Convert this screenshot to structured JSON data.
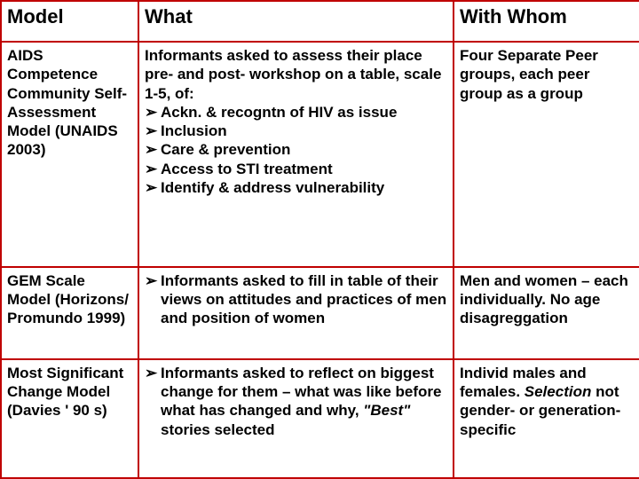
{
  "header": {
    "model": "Model",
    "what": "What",
    "whom": "With Whom"
  },
  "rows": [
    {
      "model": "AIDS Competence Community Self-Assessment Model (UNAIDS 2003)",
      "what_intro": " Informants asked to assess their place pre- and post- workshop on a table, scale 1-5, of:",
      "what_bullets": [
        "Ackn. & recogntn of HIV as issue",
        "Inclusion",
        "Care & prevention",
        "Access to STI treatment",
        "Identify & address vulnerability"
      ],
      "whom": "Four Separate Peer groups, each peer group as a group"
    },
    {
      "model": "GEM Scale Model (Horizons/ Promundo 1999)",
      "what_bullets": [
        "Informants asked to fill in table of their views on attitudes and practices of men and position of women"
      ],
      "whom": "Men and women – each individually. No age disagreggation"
    },
    {
      "model": "Most Significant Change Model (Davies ' 90 s)",
      "what_bullets_rich": [
        {
          "pre": "Informants asked to reflect on biggest change for them – what was like before what has changed and why, ",
          "italic": "\"Best\"",
          "post": " stories selected"
        }
      ],
      "whom_rich": {
        "pre": "Individ males and females. ",
        "italic": "Selection",
        "post": " not gender- or generation-specific"
      }
    }
  ],
  "colors": {
    "border": "#c00000",
    "text": "#000000",
    "background": "#ffffff"
  },
  "bullet_glyph": "➢"
}
